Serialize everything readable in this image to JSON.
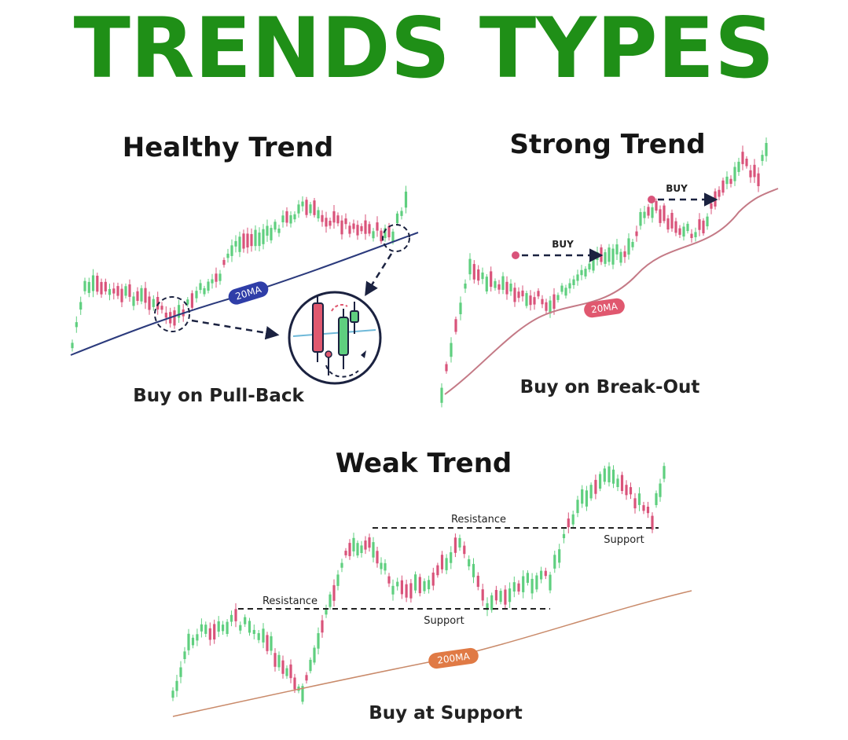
{
  "title": "TRENDS TYPES",
  "colors": {
    "title": "#1f8f17",
    "bull": "#5fcf7f",
    "bear": "#d9537a",
    "ma_healthy": "#2b3a7c",
    "ma_strong": "#c47a86",
    "ma_weak": "#c98a6a",
    "ma_badge_healthy": "#2f3ea8",
    "ma_badge_strong": "#e0586f",
    "ma_badge_weak": "#e07a45",
    "arrow": "#1b2240",
    "buy_dot": "#d9537a"
  },
  "healthy": {
    "title": "Healthy Trend",
    "ma_label": "20MA",
    "caption": "Buy on Pull-Back"
  },
  "strong": {
    "title": "Strong Trend",
    "buy_label_1": "BUY",
    "buy_label_2": "BUY",
    "ma_label": "20MA",
    "caption": "Buy on Break-Out"
  },
  "weak": {
    "title": "Weak Trend",
    "resistance_low": "Resistance",
    "support_low": "Support",
    "resistance_high": "Resistance",
    "support_high": "Support",
    "ma_label": "200MA",
    "caption": "Buy at Support"
  }
}
